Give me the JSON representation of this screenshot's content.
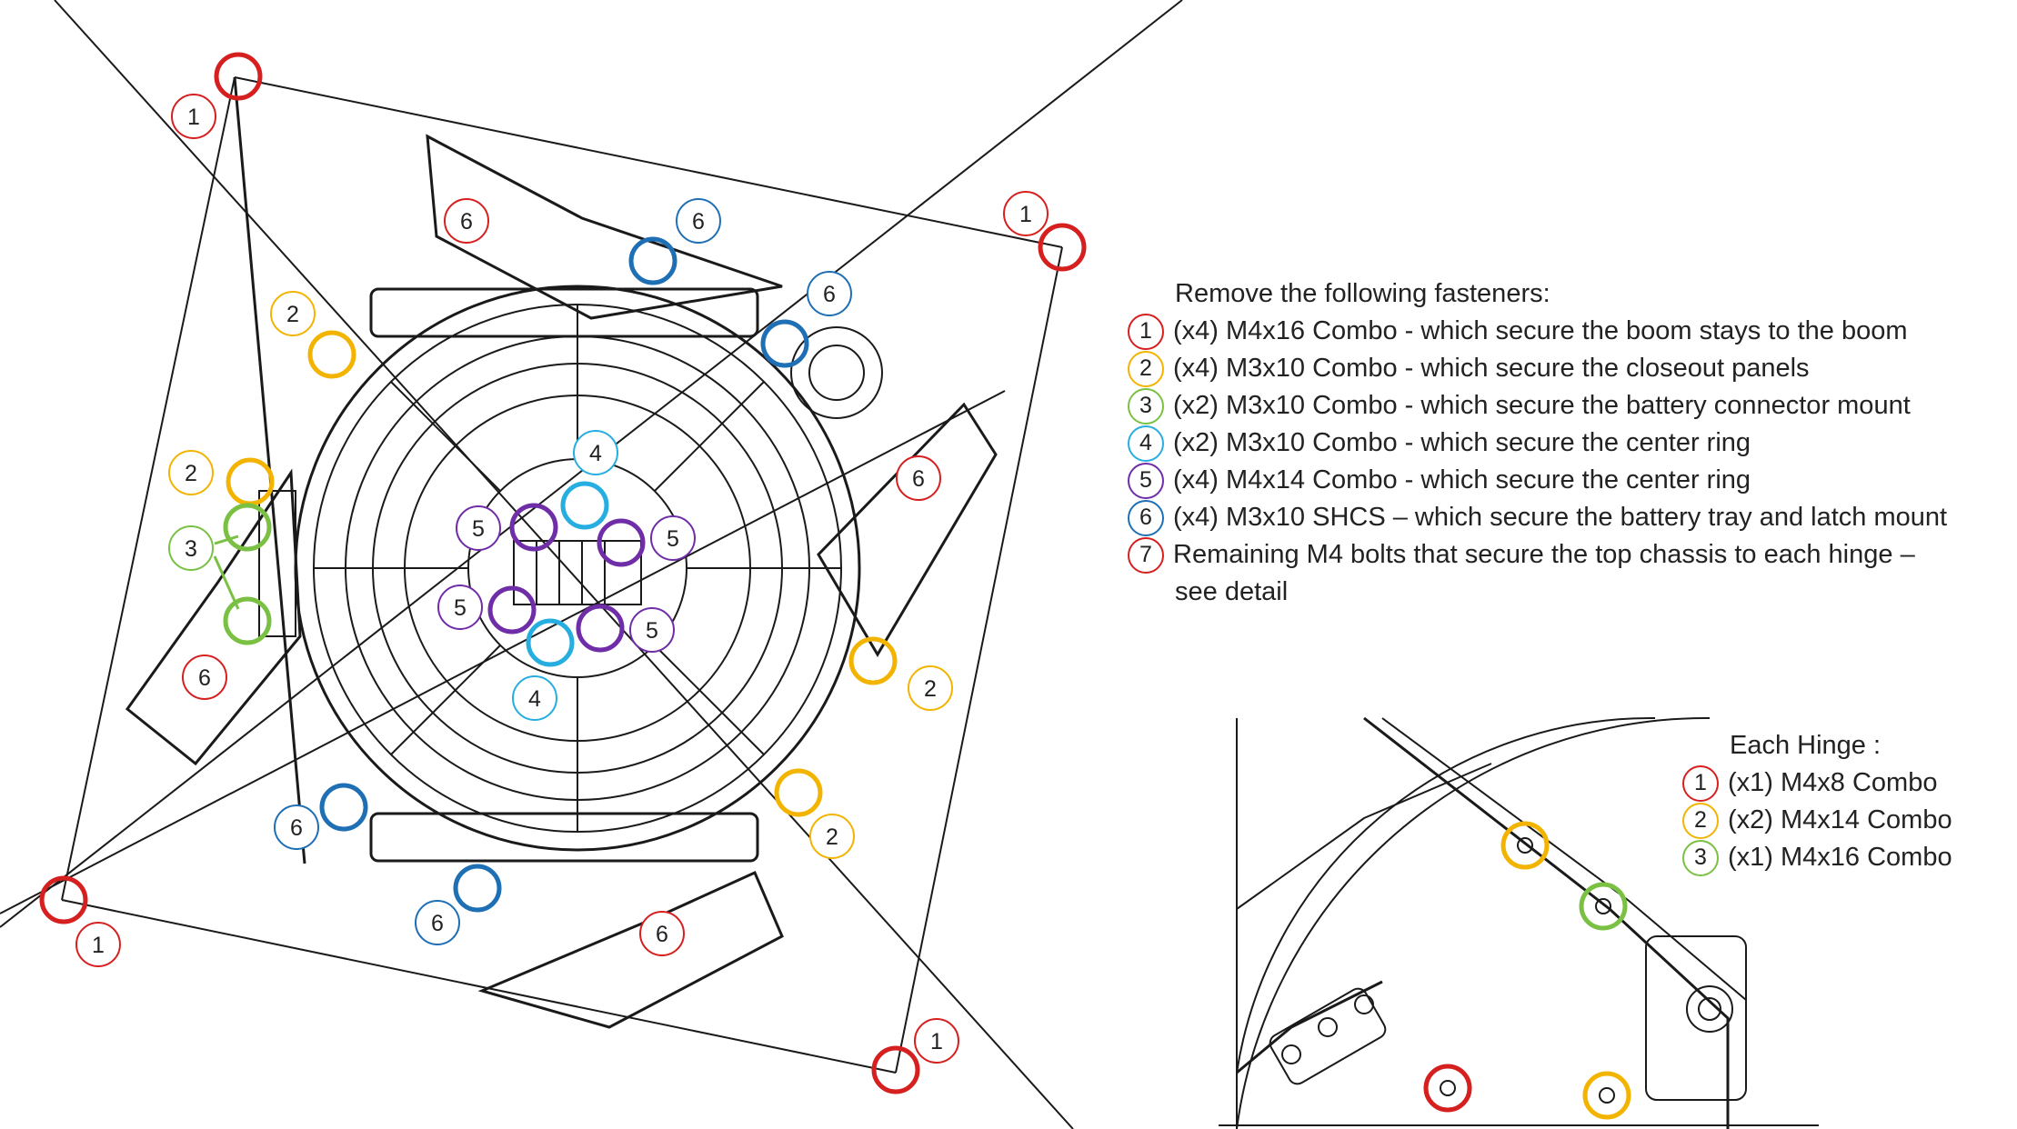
{
  "main_legend": {
    "title": "Remove the following fasteners:",
    "items": [
      {
        "num": "1",
        "text": "(x4) M4x16 Combo - which secure the boom stays to the boom",
        "color": "#d62020"
      },
      {
        "num": "2",
        "text": "(x4) M3x10 Combo - which secure the closeout panels",
        "color": "#f2b400"
      },
      {
        "num": "3",
        "text": "(x2) M3x10 Combo - which secure the battery connector mount",
        "color": "#7ac143"
      },
      {
        "num": "4",
        "text": "(x2) M3x10 Combo - which secure the center ring",
        "color": "#27aee0"
      },
      {
        "num": "5",
        "text": "(x4) M4x14 Combo - which secure the center ring",
        "color": "#6f2da8"
      },
      {
        "num": "6",
        "text": "(x4) M3x10 SHCS – which secure the battery tray and latch mount",
        "color": "#1f6fb5"
      },
      {
        "num": "7",
        "text": "Remaining M4 bolts that secure the top chassis to each hinge –",
        "color": "#d62020"
      }
    ],
    "continuation": "see detail"
  },
  "hinge_legend": {
    "title": "Each Hinge :",
    "items": [
      {
        "num": "1",
        "text": "(x1) M4x8 Combo",
        "color": "#d62020"
      },
      {
        "num": "2",
        "text": "(x2) M4x14 Combo",
        "color": "#f2b400"
      },
      {
        "num": "3",
        "text": "(x1) M4x16 Combo",
        "color": "#7ac143"
      }
    ]
  },
  "callouts": {
    "c1": "1",
    "c2": "2",
    "c3": "3",
    "c4": "4",
    "c5": "5",
    "c6": "6"
  },
  "colors": {
    "red": "#d62020",
    "yellow": "#f2b400",
    "green": "#7ac143",
    "cyan": "#27aee0",
    "purple": "#6f2da8",
    "blue": "#1f6fb5",
    "line": "#1a1a1a"
  }
}
